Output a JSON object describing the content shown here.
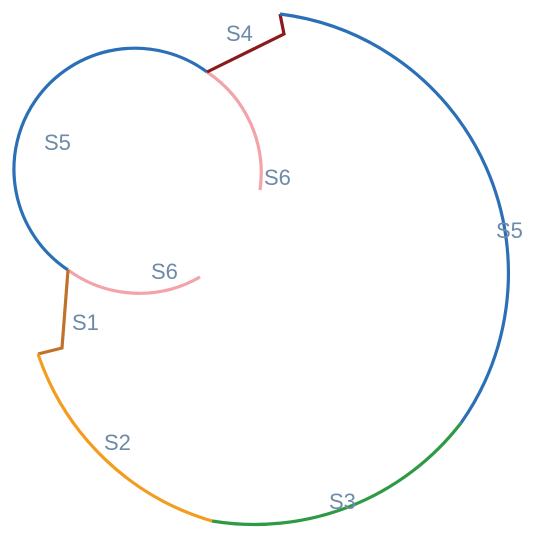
{
  "diagram": {
    "labels": {
      "s4": "S4",
      "s5_small": "S5",
      "s6_top": "S6",
      "s5_large": "S5",
      "s6_bottom": "S6",
      "s1": "S1",
      "s2": "S2",
      "s3": "S3"
    },
    "colors": {
      "s1": "#c0722a",
      "s2": "#f39c1f",
      "s3": "#2e9a45",
      "s4": "#8b1a1a",
      "s5": "#2b6fb6",
      "s6": "#f2a4a8",
      "label": "#6d8aa8"
    }
  }
}
